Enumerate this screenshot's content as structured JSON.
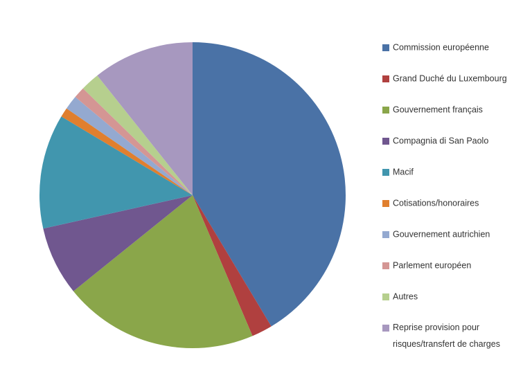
{
  "chart_data": {
    "type": "pie",
    "categories": [
      "Commission européenne",
      "Grand Duché du Luxembourg",
      "Gouvernement français",
      "Compagnia di San Paolo",
      "Macif",
      "Cotisations/honoraires",
      "Gouvernement autrichien",
      "Parlement européen",
      "Autres",
      "Reprise provision pour risques/transfert de charges"
    ],
    "values": [
      41.4,
      2.2,
      20.6,
      7.3,
      12.1,
      1.0,
      1.5,
      1.2,
      2.0,
      10.7
    ],
    "colors": [
      "#4a72a6",
      "#b0403f",
      "#8aa64a",
      "#70578f",
      "#4196ae",
      "#e07f2e",
      "#94a9d0",
      "#d49694",
      "#b6cf8e",
      "#a798bf"
    ],
    "legend": "right"
  }
}
